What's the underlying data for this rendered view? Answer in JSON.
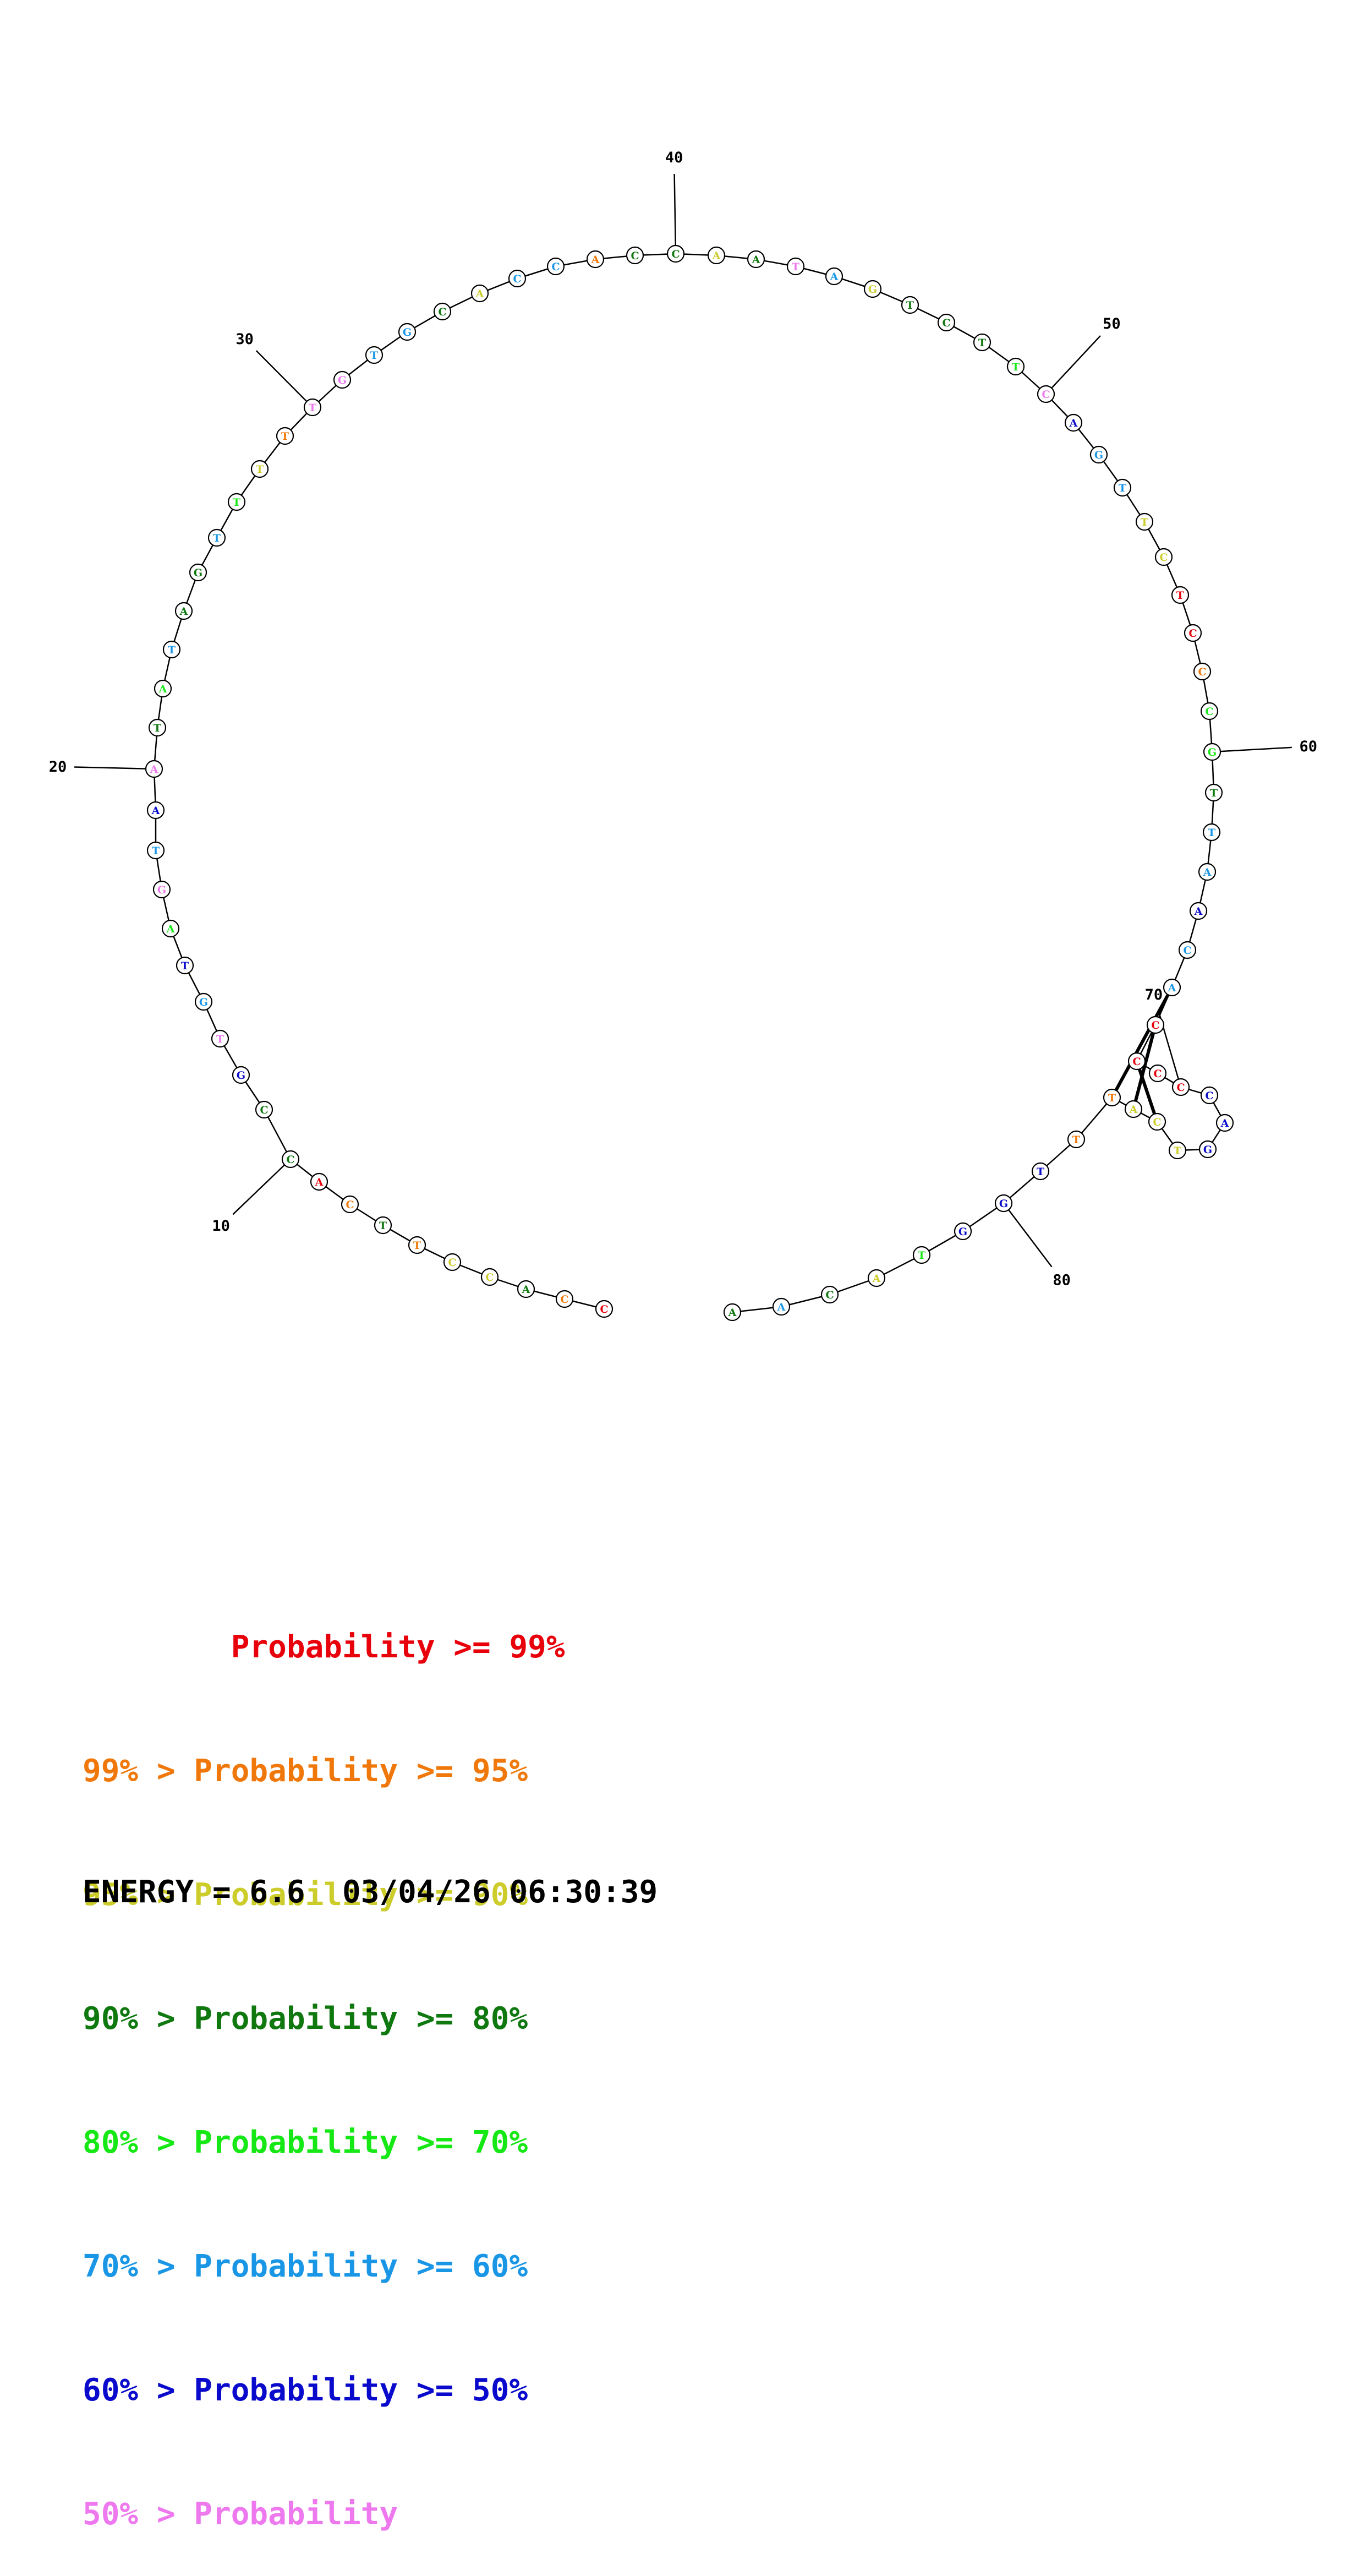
{
  "structure": {
    "sequence": "CCACCTTCACCGTGTAGTAATATAGTTTTTGTGCACCACCAATAGTCTTCAGTTCTCCCGTTAACACCCCCAGTCATTTGGTACAACCATT",
    "probability_classes": [
      0,
      1,
      3,
      2,
      2,
      1,
      3,
      1,
      0,
      3,
      3,
      6,
      7,
      5,
      6,
      4,
      7,
      5,
      6,
      7,
      3,
      4,
      5,
      3,
      3,
      5,
      4,
      2,
      1,
      7,
      7,
      5,
      5,
      3,
      2,
      5,
      5,
      1,
      3,
      3,
      2,
      3,
      7,
      5,
      2,
      3,
      3,
      3,
      4,
      7,
      6,
      5,
      5,
      2,
      2,
      0,
      0,
      1,
      4,
      4,
      3,
      5,
      5,
      6,
      5,
      5,
      0,
      0,
      0,
      0,
      6,
      6,
      6,
      2,
      2,
      2,
      1,
      1,
      6,
      6,
      6,
      4,
      2,
      3,
      5,
      3,
      2,
      3,
      2,
      3
    ],
    "tick_labels": [
      "10",
      "20",
      "30",
      "40",
      "50",
      "60",
      "70",
      "80"
    ]
  },
  "colors": [
    "#e8000b",
    "#f0780a",
    "#cccc2a",
    "#0f780f",
    "#15e815",
    "#1996e6",
    "#0a0acc",
    "#ee78ee"
  ],
  "legend": [
    {
      "text": "        Probability >= 99%",
      "color": "#e8000b"
    },
    {
      "text": "99% > Probability >= 95%",
      "color": "#f0780a"
    },
    {
      "text": "95% > Probability >= 90%",
      "color": "#cccc2a"
    },
    {
      "text": "90% > Probability >= 80%",
      "color": "#0f780f"
    },
    {
      "text": "80% > Probability >= 70%",
      "color": "#15e815"
    },
    {
      "text": "70% > Probability >= 60%",
      "color": "#1996e6"
    },
    {
      "text": "60% > Probability >= 50%",
      "color": "#0a0acc"
    },
    {
      "text": "50% > Probability",
      "color": "#ee78ee"
    }
  ],
  "energy_label": "ENERGY = 6.6  03/04/26 06:30:39"
}
